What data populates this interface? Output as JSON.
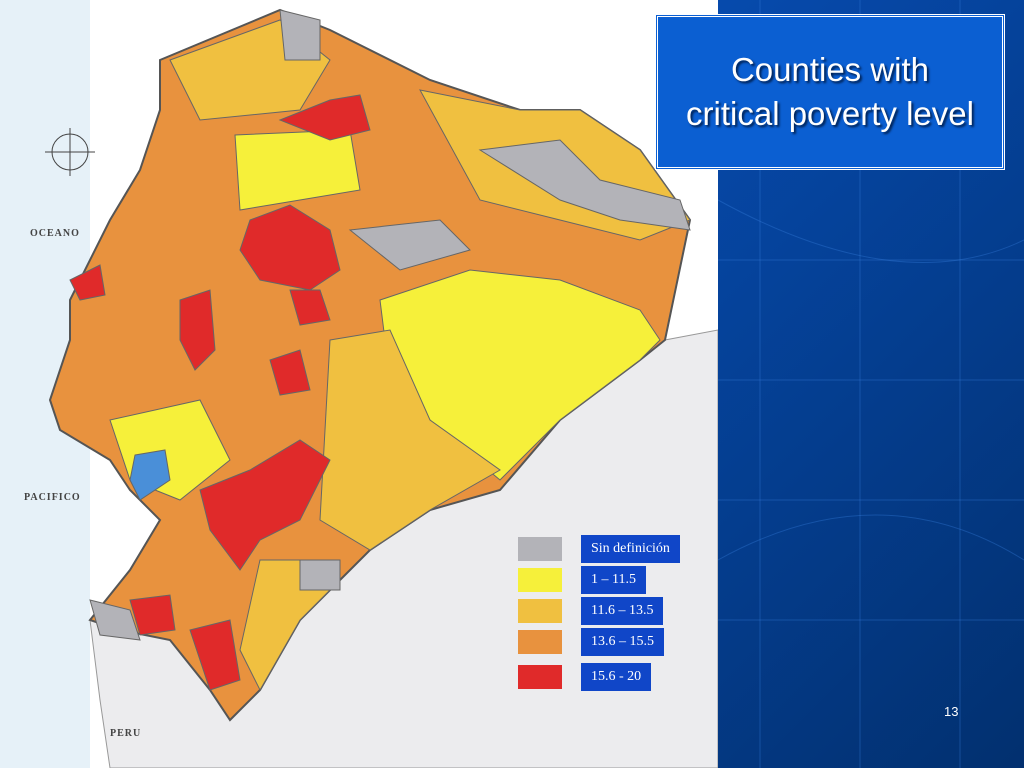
{
  "slide": {
    "title": "Counties with critical poverty level",
    "page_number": "13"
  },
  "map": {
    "labels": [
      "OCEANO",
      "PACIFICO",
      "PERU"
    ]
  },
  "legend": {
    "items": [
      {
        "label": "Sin definición",
        "color": "#b3b3b8"
      },
      {
        "label": "1 – 11.5",
        "color": "#f6f03a"
      },
      {
        "label": "11.6 – 13.5",
        "color": "#f0c040"
      },
      {
        "label": "13.6 – 15.5",
        "color": "#e8923e"
      },
      {
        "label": "15.6 - 20",
        "color": "#e02a2a"
      }
    ]
  }
}
